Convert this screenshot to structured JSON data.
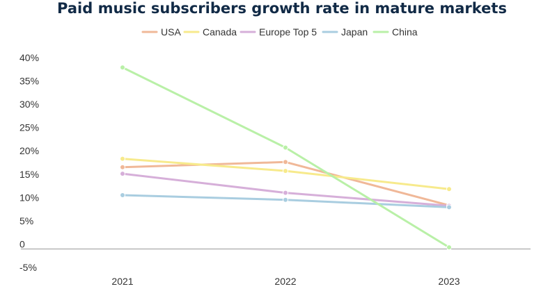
{
  "chart_data": {
    "type": "line",
    "title": "Paid music subscribers growth rate in mature markets",
    "xlabel": "",
    "ylabel": "",
    "categories": [
      "2021",
      "2022",
      "2023"
    ],
    "ylim": [
      -5,
      40
    ],
    "yticks": [
      -5,
      0,
      5,
      10,
      15,
      20,
      25,
      30,
      35,
      40
    ],
    "ytick_labels": [
      "-5%",
      "0",
      "5%",
      "10%",
      "15%",
      "20%",
      "25%",
      "30%",
      "35%",
      "40%"
    ],
    "legend_position": "top-center",
    "grid": false,
    "series": [
      {
        "name": "USA",
        "color": "#f0b898",
        "values": [
          16.5,
          17.6,
          8.3
        ]
      },
      {
        "name": "Canada",
        "color": "#f7ea8c",
        "values": [
          18.3,
          15.7,
          11.8
        ]
      },
      {
        "name": "Europe Top 5",
        "color": "#d6afd9",
        "values": [
          15.1,
          11.0,
          8.2
        ]
      },
      {
        "name": "Japan",
        "color": "#a9cde0",
        "values": [
          10.5,
          9.5,
          7.9
        ]
      },
      {
        "name": "China",
        "color": "#b9f0a7",
        "values": [
          37.9,
          20.7,
          -0.7
        ]
      }
    ]
  }
}
